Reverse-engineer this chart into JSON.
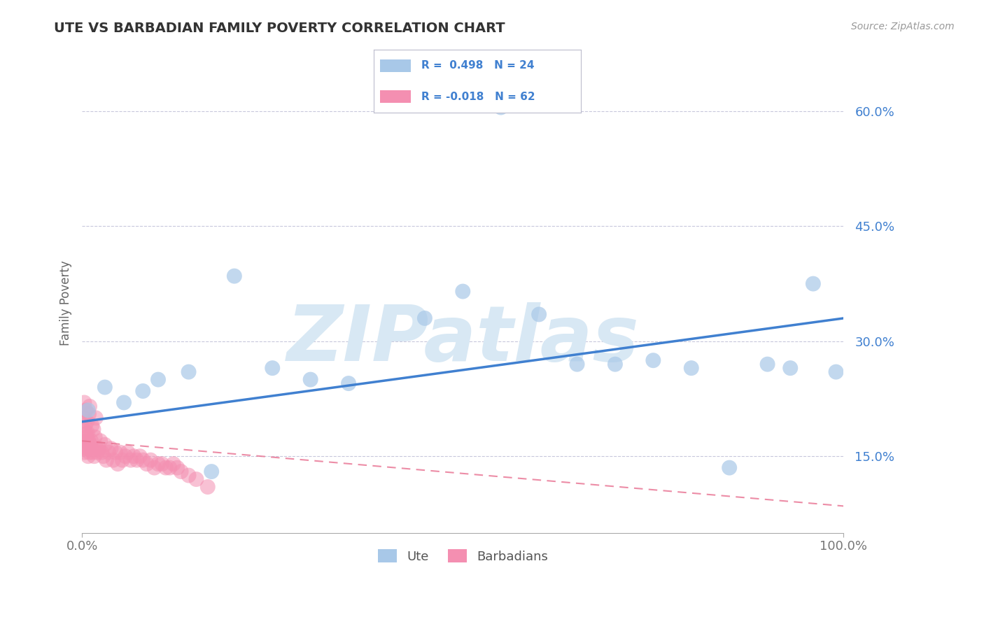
{
  "title": "UTE VS BARBADIAN FAMILY POVERTY CORRELATION CHART",
  "source_text": "Source: ZipAtlas.com",
  "ylabel": "Family Poverty",
  "xlim": [
    0,
    100
  ],
  "ylim": [
    5,
    65
  ],
  "yticks": [
    15,
    30,
    45,
    60
  ],
  "ytick_labels": [
    "15.0%",
    "30.0%",
    "45.0%",
    "60.0%"
  ],
  "xticks": [
    0,
    100
  ],
  "xtick_labels": [
    "0.0%",
    "100.0%"
  ],
  "legend_ute_r": "R =  0.498",
  "legend_ute_n": "N = 24",
  "legend_barb_r": "R = -0.018",
  "legend_barb_n": "N = 62",
  "ute_color": "#A8C8E8",
  "barb_color": "#F48FB1",
  "trend_ute_color": "#4080D0",
  "trend_barb_color": "#E87090",
  "text_color": "#4080D0",
  "background_color": "#FFFFFF",
  "grid_color": "#C8C8DC",
  "watermark": "ZIPatlas",
  "watermark_color": "#D8E8F4",
  "ute_x": [
    0.8,
    3.0,
    5.5,
    8.0,
    10.0,
    14.0,
    17.0,
    20.0,
    25.0,
    30.0,
    35.0,
    45.0,
    50.0,
    55.0,
    60.0,
    65.0,
    70.0,
    75.0,
    80.0,
    85.0,
    90.0,
    93.0,
    96.0,
    99.0
  ],
  "ute_y": [
    21.0,
    24.0,
    22.0,
    23.5,
    25.0,
    26.0,
    13.0,
    38.5,
    26.5,
    25.0,
    24.5,
    33.0,
    36.5,
    60.5,
    33.5,
    27.0,
    27.0,
    27.5,
    26.5,
    13.5,
    27.0,
    26.5,
    37.5,
    26.0
  ],
  "barb_x": [
    0.1,
    0.15,
    0.2,
    0.25,
    0.3,
    0.35,
    0.4,
    0.45,
    0.5,
    0.55,
    0.6,
    0.65,
    0.7,
    0.75,
    0.8,
    0.85,
    0.9,
    0.95,
    1.0,
    1.1,
    1.2,
    1.3,
    1.4,
    1.5,
    1.6,
    1.7,
    1.8,
    1.9,
    2.0,
    2.2,
    2.4,
    2.6,
    2.8,
    3.0,
    3.2,
    3.5,
    3.8,
    4.1,
    4.4,
    4.7,
    5.0,
    5.3,
    5.7,
    6.0,
    6.4,
    6.8,
    7.2,
    7.6,
    8.0,
    8.5,
    9.0,
    9.5,
    10.0,
    10.5,
    11.0,
    11.5,
    12.0,
    12.5,
    13.0,
    14.0,
    15.0,
    16.5
  ],
  "barb_y": [
    17.0,
    16.0,
    18.5,
    20.0,
    22.0,
    15.5,
    19.0,
    16.5,
    21.0,
    18.0,
    17.5,
    19.5,
    16.0,
    18.0,
    15.0,
    17.0,
    20.5,
    15.5,
    21.5,
    16.5,
    17.0,
    19.0,
    15.5,
    18.5,
    15.0,
    17.5,
    20.0,
    16.0,
    15.5,
    16.0,
    17.0,
    15.5,
    15.0,
    16.5,
    14.5,
    15.5,
    16.0,
    14.5,
    15.5,
    14.0,
    15.5,
    14.5,
    15.0,
    15.5,
    14.5,
    15.0,
    14.5,
    15.0,
    14.5,
    14.0,
    14.5,
    13.5,
    14.0,
    14.0,
    13.5,
    13.5,
    14.0,
    13.5,
    13.0,
    12.5,
    12.0,
    11.0
  ],
  "ute_trend_x0": 0,
  "ute_trend_y0": 19.5,
  "ute_trend_x1": 100,
  "ute_trend_y1": 33.0,
  "barb_trend_x0": 0,
  "barb_trend_y0": 17.0,
  "barb_trend_x1": 100,
  "barb_trend_y1": 8.5
}
